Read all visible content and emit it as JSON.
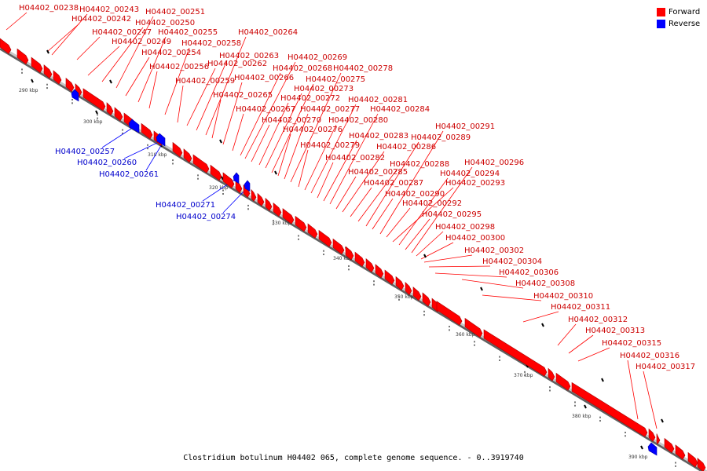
{
  "title": "Clostridium botulinum H04402 065, complete genome sequence. - 0..3919740",
  "legend": {
    "forward": {
      "label": "Forward",
      "color": "#ff0000"
    },
    "reverse": {
      "label": "Reverse",
      "color": "#0000ff"
    }
  },
  "colors": {
    "forward_text": "#cc0000",
    "reverse_text": "#0000cc",
    "axis": "#808080"
  },
  "axis_ticks": [
    "290 kbp",
    "300 kbp",
    "310 kbp",
    "320 kbp",
    "330 kbp",
    "340 kbp",
    "350 kbp",
    "360 kbp",
    "370 kbp",
    "380 kbp",
    "390 kbp"
  ],
  "forward_labels": [
    "H04402_00238",
    "H04402_00242",
    "H04402_00243",
    "H04402_00247",
    "H04402_00249",
    "H04402_00250",
    "H04402_00251",
    "H04402_00254",
    "H04402_00255",
    "H04402_00256",
    "H04402_00258",
    "H04402_00259",
    "H04402_00262",
    "H04402_00263",
    "H04402_00264",
    "H04402_00265",
    "H04402_00266",
    "H04402_00267",
    "H04402_00268",
    "H04402_00269",
    "H04402_00270",
    "H04402_00272",
    "H04402_00273",
    "H04402_00275",
    "H04402_00276",
    "H04402_00277",
    "H04402_00278",
    "H04402_00279",
    "H04402_00280",
    "H04402_00281",
    "H04402_00282",
    "H04402_00283",
    "H04402_00284",
    "H04402_00285",
    "H04402_00286",
    "H04402_00287",
    "H04402_00288",
    "H04402_00289",
    "H04402_00290",
    "H04402_00291",
    "H04402_00292",
    "H04402_00293",
    "H04402_00294",
    "H04402_00295",
    "H04402_00296",
    "H04402_00298",
    "H04402_00300",
    "H04402_00302",
    "H04402_00304",
    "H04402_00306",
    "H04402_00308",
    "H04402_00310",
    "H04402_00311",
    "H04402_00312",
    "H04402_00313",
    "H04402_00315",
    "H04402_00316",
    "H04402_00317"
  ],
  "reverse_labels": [
    "H04402_00257",
    "H04402_00260",
    "H04402_00261",
    "H04402_00271",
    "H04402_00274"
  ]
}
